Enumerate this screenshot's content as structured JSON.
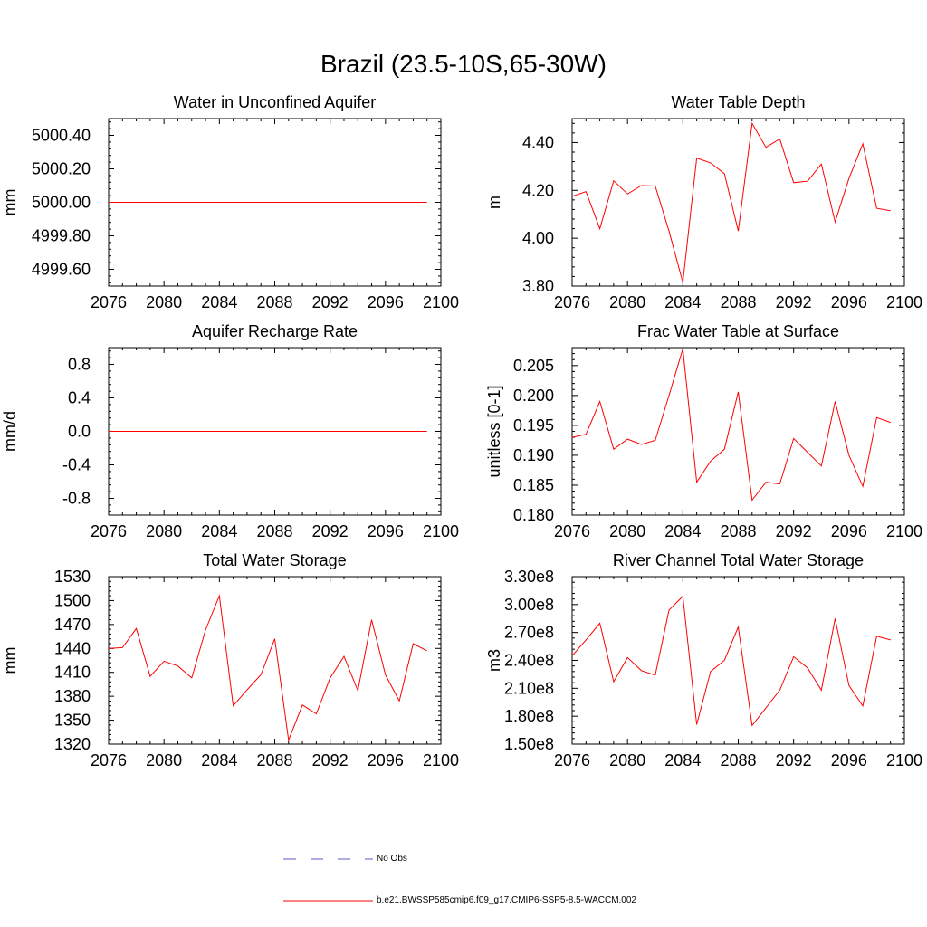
{
  "figure": {
    "title": "Brazil (23.5-10S,65-30W)",
    "line_color": "#ff0000",
    "obs_color": "#5b5bc8",
    "legend": {
      "obs_label": "No Obs",
      "run_label": "b.e21.BWSSP585cmip6.f09_g17.CMIP6-SSP5-8.5-WACCM.002"
    }
  },
  "chart_data": [
    {
      "type": "line",
      "title": "Water in Unconfined Aquifer",
      "ylabel": "mm",
      "xlim": [
        2076,
        2100
      ],
      "ylim": [
        4999.5,
        5000.5
      ],
      "xticks": [
        2076,
        2080,
        2084,
        2088,
        2092,
        2096,
        2100
      ],
      "xtick_labels": [
        "2076",
        "2080",
        "2084",
        "2088",
        "2092",
        "2096",
        "2100"
      ],
      "yticks": [
        4999.6,
        4999.8,
        5000.0,
        5000.2,
        5000.4
      ],
      "ytick_labels": [
        "4999.60",
        "4999.80",
        "5000.00",
        "5000.20",
        "5000.40"
      ],
      "x": [
        2076,
        2077,
        2078,
        2079,
        2080,
        2081,
        2082,
        2083,
        2084,
        2085,
        2086,
        2087,
        2088,
        2089,
        2090,
        2091,
        2092,
        2093,
        2094,
        2095,
        2096,
        2097,
        2098,
        2099
      ],
      "y": [
        5000,
        5000,
        5000,
        5000,
        5000,
        5000,
        5000,
        5000,
        5000,
        5000,
        5000,
        5000,
        5000,
        5000,
        5000,
        5000,
        5000,
        5000,
        5000,
        5000,
        5000,
        5000,
        5000,
        5000
      ]
    },
    {
      "type": "line",
      "title": "Water Table Depth",
      "ylabel": "m",
      "xlim": [
        2076,
        2100
      ],
      "ylim": [
        3.8,
        4.5
      ],
      "xticks": [
        2076,
        2080,
        2084,
        2088,
        2092,
        2096,
        2100
      ],
      "xtick_labels": [
        "2076",
        "2080",
        "2084",
        "2088",
        "2092",
        "2096",
        "2100"
      ],
      "yticks": [
        3.8,
        4.0,
        4.2,
        4.4
      ],
      "ytick_labels": [
        "3.80",
        "4.00",
        "4.20",
        "4.40"
      ],
      "x": [
        2076,
        2077,
        2078,
        2079,
        2080,
        2081,
        2082,
        2083,
        2084,
        2085,
        2086,
        2087,
        2088,
        2089,
        2090,
        2091,
        2092,
        2093,
        2094,
        2095,
        2096,
        2097,
        2098,
        2099
      ],
      "y": [
        4.175,
        4.195,
        4.04,
        4.24,
        4.185,
        4.22,
        4.218,
        4.03,
        3.815,
        4.335,
        4.315,
        4.27,
        4.03,
        4.48,
        4.38,
        4.415,
        4.232,
        4.238,
        4.31,
        4.068,
        4.25,
        4.395,
        4.125,
        4.115
      ]
    },
    {
      "type": "line",
      "title": "Aquifer Recharge Rate",
      "ylabel": "mm/d",
      "xlim": [
        2076,
        2100
      ],
      "ylim": [
        -1.0,
        1.0
      ],
      "xticks": [
        2076,
        2080,
        2084,
        2088,
        2092,
        2096,
        2100
      ],
      "xtick_labels": [
        "2076",
        "2080",
        "2084",
        "2088",
        "2092",
        "2096",
        "2100"
      ],
      "yticks": [
        -0.8,
        -0.4,
        0.0,
        0.4,
        0.8
      ],
      "ytick_labels": [
        "-0.8",
        "-0.4",
        "0.0",
        "0.4",
        "0.8"
      ],
      "x": [
        2076,
        2077,
        2078,
        2079,
        2080,
        2081,
        2082,
        2083,
        2084,
        2085,
        2086,
        2087,
        2088,
        2089,
        2090,
        2091,
        2092,
        2093,
        2094,
        2095,
        2096,
        2097,
        2098,
        2099
      ],
      "y": [
        0,
        0,
        0,
        0,
        0,
        0,
        0,
        0,
        0,
        0,
        0,
        0,
        0,
        0,
        0,
        0,
        0,
        0,
        0,
        0,
        0,
        0,
        0,
        0
      ]
    },
    {
      "type": "line",
      "title": "Frac Water Table at Surface",
      "ylabel": "unitless [0-1]",
      "xlim": [
        2076,
        2100
      ],
      "ylim": [
        0.18,
        0.208
      ],
      "xticks": [
        2076,
        2080,
        2084,
        2088,
        2092,
        2096,
        2100
      ],
      "xtick_labels": [
        "2076",
        "2080",
        "2084",
        "2088",
        "2092",
        "2096",
        "2100"
      ],
      "yticks": [
        0.18,
        0.185,
        0.19,
        0.195,
        0.2,
        0.205
      ],
      "ytick_labels": [
        "0.180",
        "0.185",
        "0.190",
        "0.195",
        "0.200",
        "0.205"
      ],
      "x": [
        2076,
        2077,
        2078,
        2079,
        2080,
        2081,
        2082,
        2083,
        2084,
        2085,
        2086,
        2087,
        2088,
        2089,
        2090,
        2091,
        2092,
        2093,
        2094,
        2095,
        2096,
        2097,
        2098,
        2099
      ],
      "y": [
        0.193,
        0.1935,
        0.199,
        0.191,
        0.1927,
        0.1918,
        0.1925,
        0.2,
        0.2078,
        0.1855,
        0.189,
        0.191,
        0.2006,
        0.1825,
        0.1855,
        0.1852,
        0.1928,
        0.1905,
        0.1882,
        0.199,
        0.19,
        0.1848,
        0.1963,
        0.1955
      ]
    },
    {
      "type": "line",
      "title": "Total Water Storage",
      "ylabel": "mm",
      "xlim": [
        2076,
        2100
      ],
      "ylim": [
        1320,
        1530
      ],
      "xticks": [
        2076,
        2080,
        2084,
        2088,
        2092,
        2096,
        2100
      ],
      "xtick_labels": [
        "2076",
        "2080",
        "2084",
        "2088",
        "2092",
        "2096",
        "2100"
      ],
      "yticks": [
        1320,
        1350,
        1380,
        1410,
        1440,
        1470,
        1500,
        1530
      ],
      "ytick_labels": [
        "1320",
        "1350",
        "1380",
        "1410",
        "1440",
        "1470",
        "1500",
        "1530"
      ],
      "x": [
        2076,
        2077,
        2078,
        2079,
        2080,
        2081,
        2082,
        2083,
        2084,
        2085,
        2086,
        2087,
        2088,
        2089,
        2090,
        2091,
        2092,
        2093,
        2094,
        2095,
        2096,
        2097,
        2098,
        2099
      ],
      "y": [
        1440,
        1441,
        1465,
        1405,
        1424,
        1418,
        1403,
        1463,
        1506,
        1368,
        1388,
        1407,
        1452,
        1325,
        1369,
        1358,
        1403,
        1430,
        1387,
        1476,
        1407,
        1374,
        1446,
        1437
      ]
    },
    {
      "type": "line",
      "title": "River Channel Total Water Storage",
      "ylabel": "m3",
      "xlim": [
        2076,
        2100
      ],
      "ylim": [
        150000000,
        330000000
      ],
      "xticks": [
        2076,
        2080,
        2084,
        2088,
        2092,
        2096,
        2100
      ],
      "xtick_labels": [
        "2076",
        "2080",
        "2084",
        "2088",
        "2092",
        "2096",
        "2100"
      ],
      "yticks": [
        150000000,
        180000000,
        210000000,
        240000000,
        270000000,
        300000000,
        330000000
      ],
      "ytick_labels": [
        "1.50e8",
        "1.80e8",
        "2.10e8",
        "2.40e8",
        "2.70e8",
        "3.00e8",
        "3.30e8"
      ],
      "x": [
        2076,
        2077,
        2078,
        2079,
        2080,
        2081,
        2082,
        2083,
        2084,
        2085,
        2086,
        2087,
        2088,
        2089,
        2090,
        2091,
        2092,
        2093,
        2094,
        2095,
        2096,
        2097,
        2098,
        2099
      ],
      "y": [
        245000000,
        262000000,
        280000000,
        217000000,
        243000000,
        229000000,
        224000000,
        294000000,
        309000000,
        171000000,
        228000000,
        240000000,
        276000000,
        170000000,
        189000000,
        208000000,
        244000000,
        232000000,
        208000000,
        285000000,
        213000000,
        191000000,
        266000000,
        262000000
      ]
    }
  ]
}
